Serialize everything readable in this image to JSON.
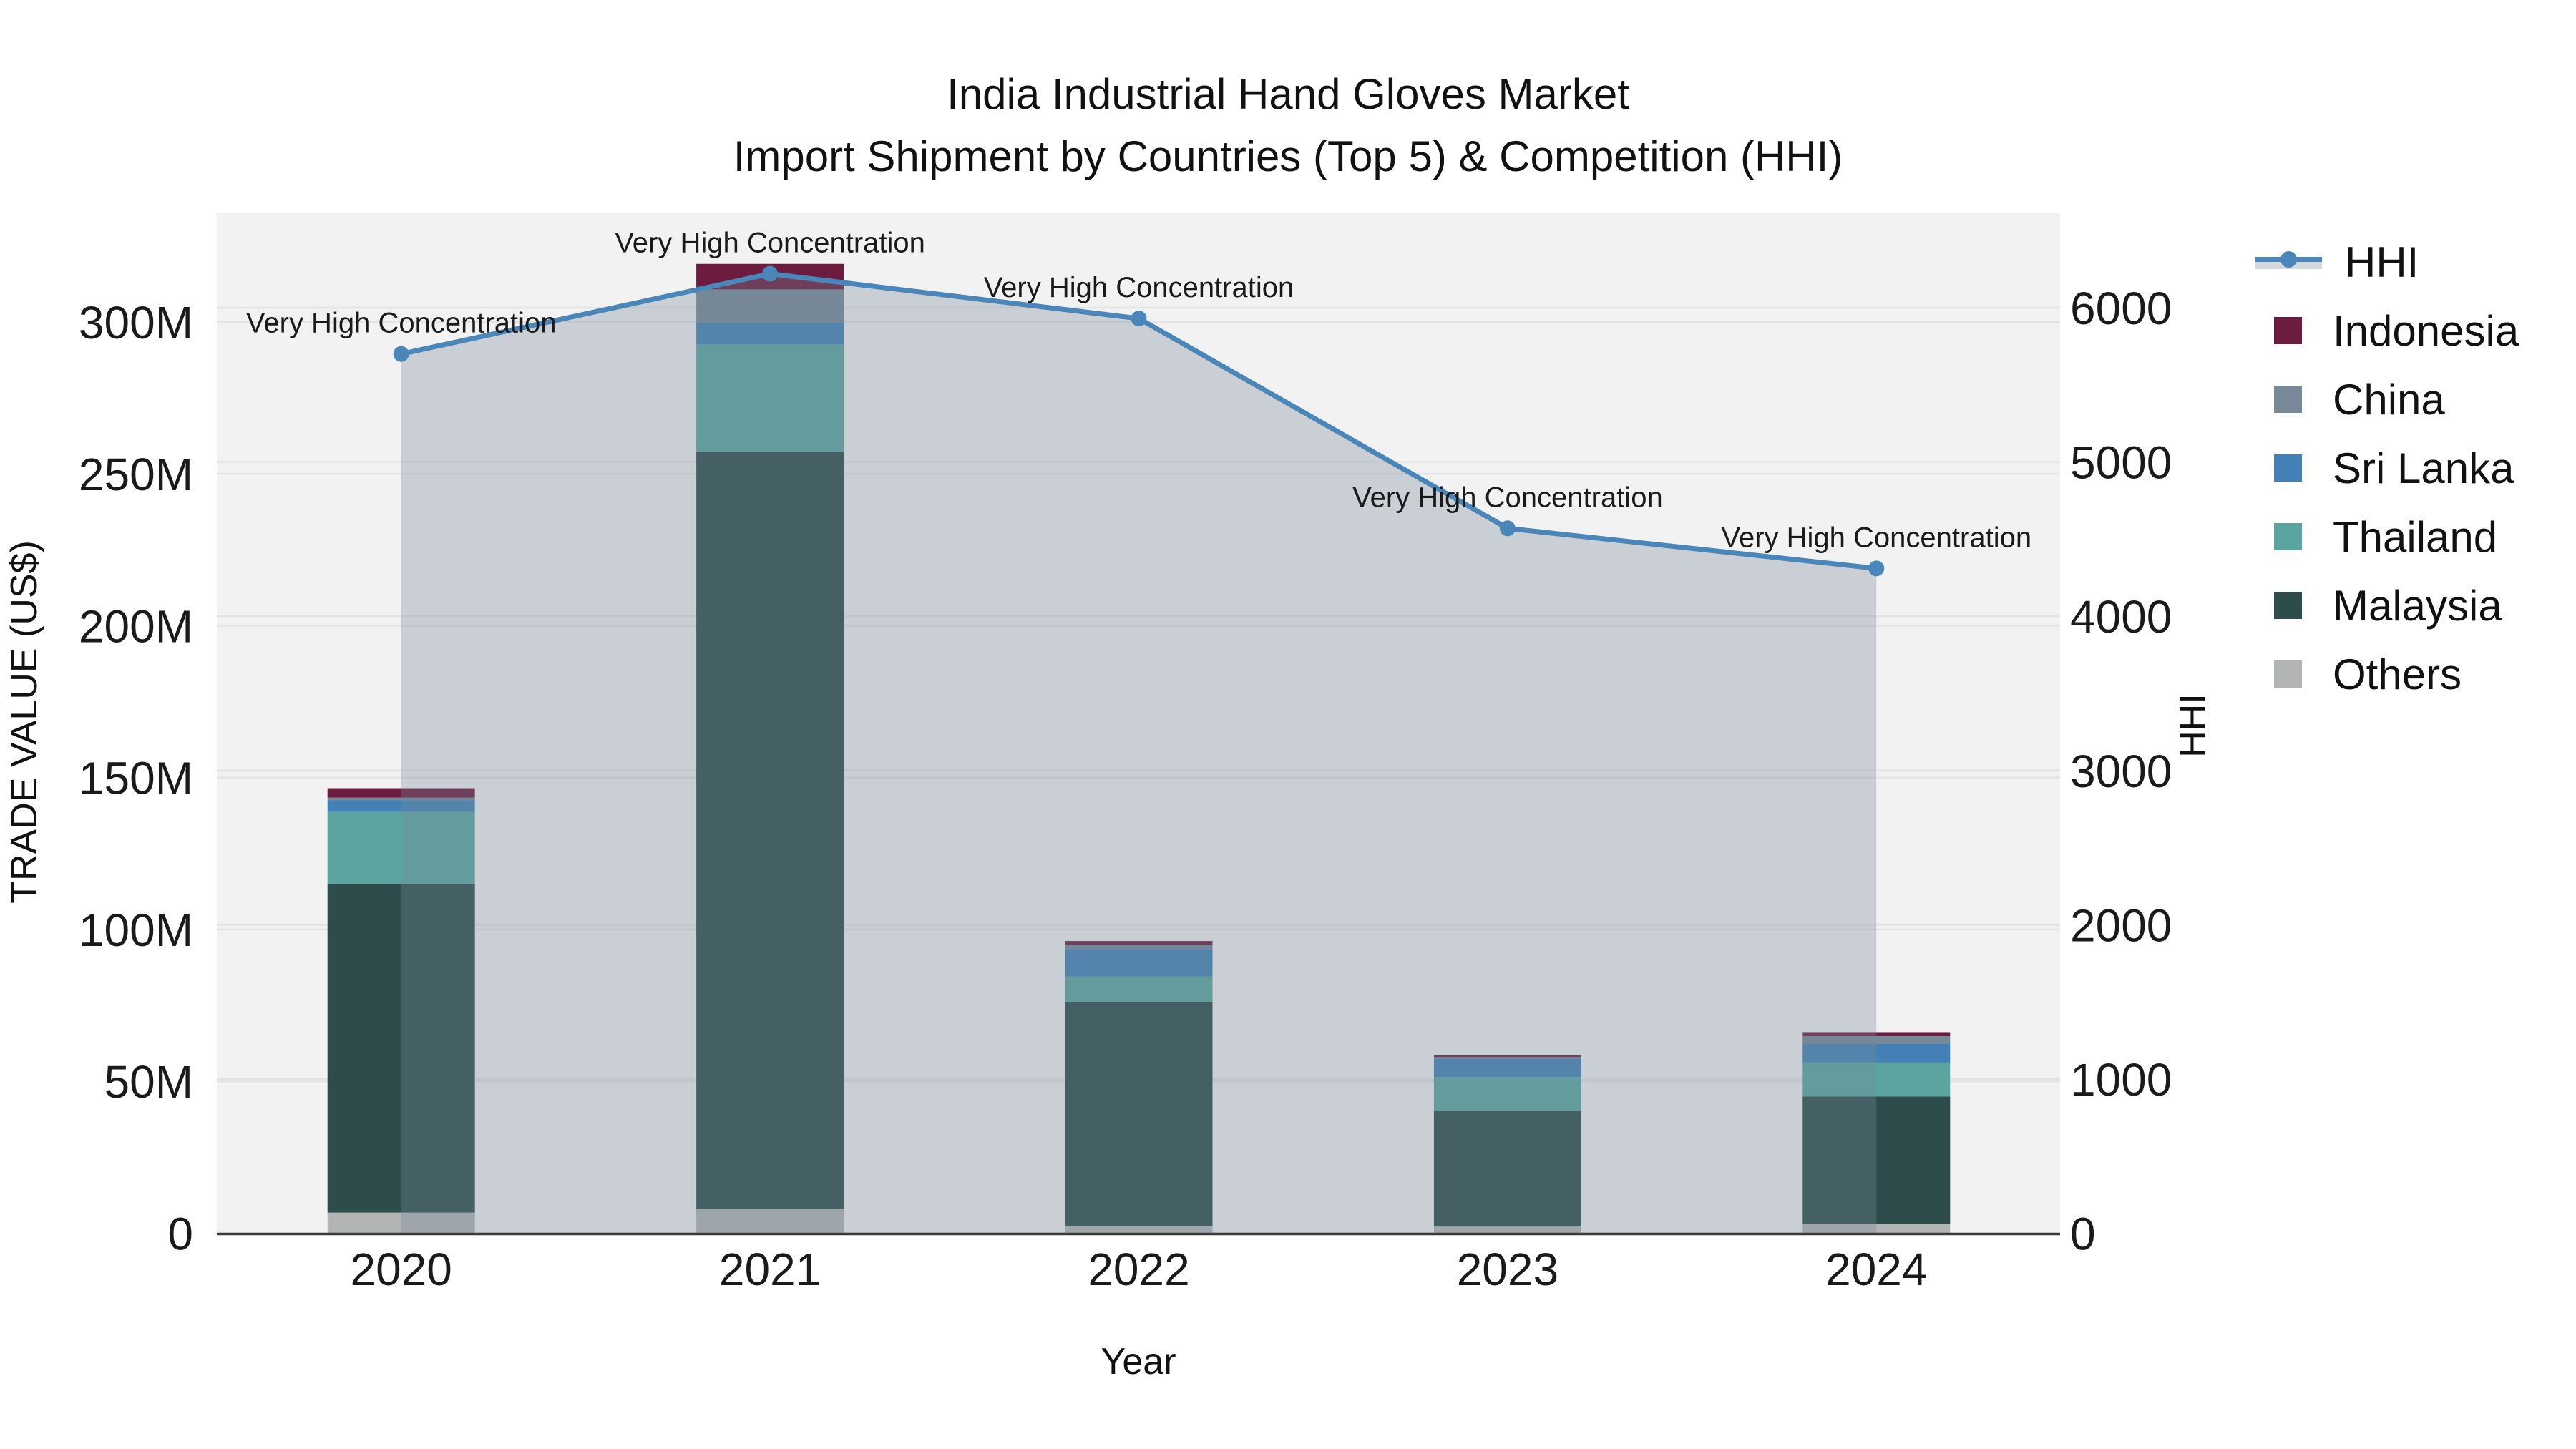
{
  "title": {
    "line1": "India Industrial Hand Gloves Market",
    "line2": "Import Shipment by Countries (Top 5) & Competition (HHI)"
  },
  "axes": {
    "x_label": "Year",
    "y_left_label": "TRADE VALUE (US$)",
    "y_right_label": "HHI",
    "y_left_tick_labels": [
      "0",
      "50M",
      "100M",
      "150M",
      "200M",
      "250M",
      "300M"
    ],
    "y_left_tick_values": [
      0,
      50,
      100,
      150,
      200,
      250,
      300
    ],
    "y_right_tick_labels": [
      "0",
      "1000",
      "2000",
      "3000",
      "4000",
      "5000",
      "6000"
    ],
    "y_right_tick_values": [
      0,
      1000,
      2000,
      3000,
      4000,
      5000,
      6000
    ]
  },
  "legend": {
    "items": [
      {
        "label": "HHI",
        "kind": "line",
        "color": "#4A86B8"
      },
      {
        "label": "Indonesia",
        "kind": "patch",
        "color": "#6C1C3E"
      },
      {
        "label": "China",
        "kind": "patch",
        "color": "#778899"
      },
      {
        "label": "Sri Lanka",
        "kind": "patch",
        "color": "#4380B5"
      },
      {
        "label": "Thailand",
        "kind": "patch",
        "color": "#5CA4A0"
      },
      {
        "label": "Malaysia",
        "kind": "patch",
        "color": "#2D4C4B"
      },
      {
        "label": "Others",
        "kind": "patch",
        "color": "#B3B5B5"
      }
    ]
  },
  "chart_data": {
    "type": "bar",
    "subtype": "stacked-bars-with-dual-axis-line",
    "title": "India Industrial Hand Gloves Market — Import Shipment by Countries (Top 5) & Competition (HHI)",
    "xlabel": "Year",
    "ylabel_left": "TRADE VALUE (US$)",
    "ylabel_right": "HHI",
    "categories": [
      "2020",
      "2021",
      "2022",
      "2023",
      "2024"
    ],
    "unit_left": "USD millions",
    "ylim_left": [
      0,
      336
    ],
    "ylim_right": [
      0,
      6617
    ],
    "grid": true,
    "legend_position": "upper right, outside",
    "stack_order_bottom_to_top": [
      "Others",
      "Malaysia",
      "Thailand",
      "Sri Lanka",
      "China",
      "Indonesia"
    ],
    "series": [
      {
        "name": "Others",
        "type": "bar",
        "axis": "left",
        "color": "#B3B5B5",
        "values": [
          6.8,
          7.9,
          2.4,
          2.2,
          3.0
        ]
      },
      {
        "name": "Malaysia",
        "type": "bar",
        "axis": "left",
        "color": "#2D4C4B",
        "values": [
          108.2,
          249.3,
          73.6,
          38.1,
          42.0
        ]
      },
      {
        "name": "Thailand",
        "type": "bar",
        "axis": "left",
        "color": "#5CA4A0",
        "values": [
          23.7,
          35.3,
          8.5,
          11.1,
          11.2
        ]
      },
      {
        "name": "Sri Lanka",
        "type": "bar",
        "axis": "left",
        "color": "#4380B5",
        "values": [
          3.8,
          7.2,
          9.1,
          6.1,
          6.1
        ]
      },
      {
        "name": "China",
        "type": "bar",
        "axis": "left",
        "color": "#778899",
        "values": [
          0.9,
          11.0,
          1.4,
          0.5,
          2.6
        ]
      },
      {
        "name": "Indonesia",
        "type": "bar",
        "axis": "left",
        "color": "#6C1C3E",
        "values": [
          3.1,
          8.4,
          1.2,
          0.6,
          1.3
        ]
      }
    ],
    "bar_totals": [
      146.5,
      319.1,
      96.2,
      58.6,
      66.2
    ],
    "hhi_line": {
      "name": "HHI",
      "type": "line",
      "axis": "right",
      "color": "#4A86B8",
      "area_fill": "rgba(119,136,153,0.33)",
      "values": [
        5700,
        6220,
        5930,
        4570,
        4310
      ],
      "annotations": [
        "Very High Concentration",
        "Very High Concentration",
        "Very High Concentration",
        "Very High Concentration",
        "Very High Concentration"
      ]
    }
  }
}
